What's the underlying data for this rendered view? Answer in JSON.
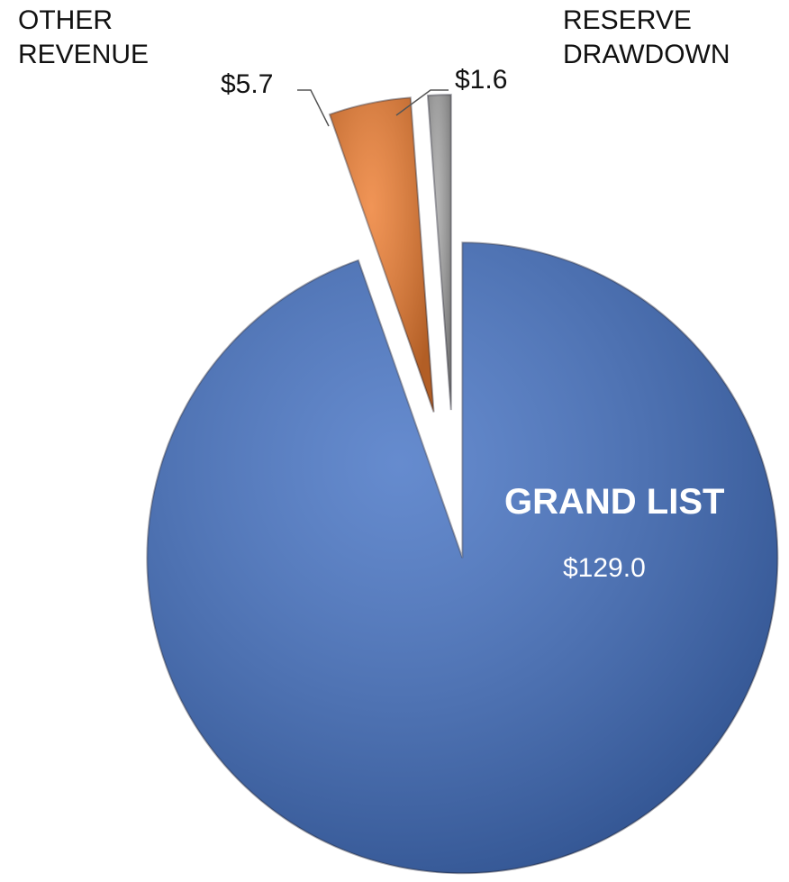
{
  "chart_data": {
    "type": "pie",
    "categories": [
      "GRAND LIST",
      "OTHER REVENUE",
      "RESERVE DRAWDOWN"
    ],
    "values": [
      129.0,
      5.7,
      1.6
    ],
    "value_labels": [
      "$129.0",
      "$5.7",
      "$1.6"
    ],
    "colors": [
      "#4472c4",
      "#ed7d31",
      "#a5a5a5"
    ]
  }
}
